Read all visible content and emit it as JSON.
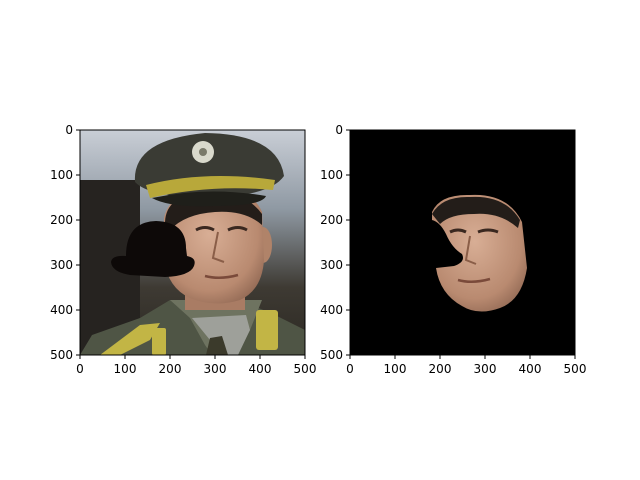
{
  "chart_data": [
    {
      "type": "image",
      "content": "photo of a man in a military uniform with a peaked cap; a black hat-shaped mask covers the left side of his face",
      "xlim": [
        0,
        500
      ],
      "ylim": [
        500,
        0
      ],
      "xticks": [
        0,
        100,
        200,
        300,
        400,
        500
      ],
      "yticks": [
        0,
        100,
        200,
        300,
        400,
        500
      ],
      "xtick_labels": [
        "0",
        "100",
        "200",
        "300",
        "400",
        "500"
      ],
      "ytick_labels": [
        "0",
        "100",
        "200",
        "300",
        "400",
        "500"
      ],
      "grid": false
    },
    {
      "type": "image",
      "content": "segmented face region on a black background, with a cut-out where the mask was",
      "xlim": [
        0,
        500
      ],
      "ylim": [
        500,
        0
      ],
      "xticks": [
        0,
        100,
        200,
        300,
        400,
        500
      ],
      "yticks": [
        0,
        100,
        200,
        300,
        400,
        500
      ],
      "xtick_labels": [
        "0",
        "100",
        "200",
        "300",
        "400",
        "500"
      ],
      "ytick_labels": [
        "0",
        "100",
        "200",
        "300",
        "400",
        "500"
      ],
      "grid": false
    }
  ],
  "colors": {
    "axes": "#000000",
    "background": "#000000",
    "mask": "#0d0908",
    "skin": "#c69a82",
    "uniform": "#4f5545",
    "cap": "#3a3b34",
    "cap_band": "#b8a83a",
    "epaulette": "#c2b545",
    "sky": "#aeb7c2"
  }
}
